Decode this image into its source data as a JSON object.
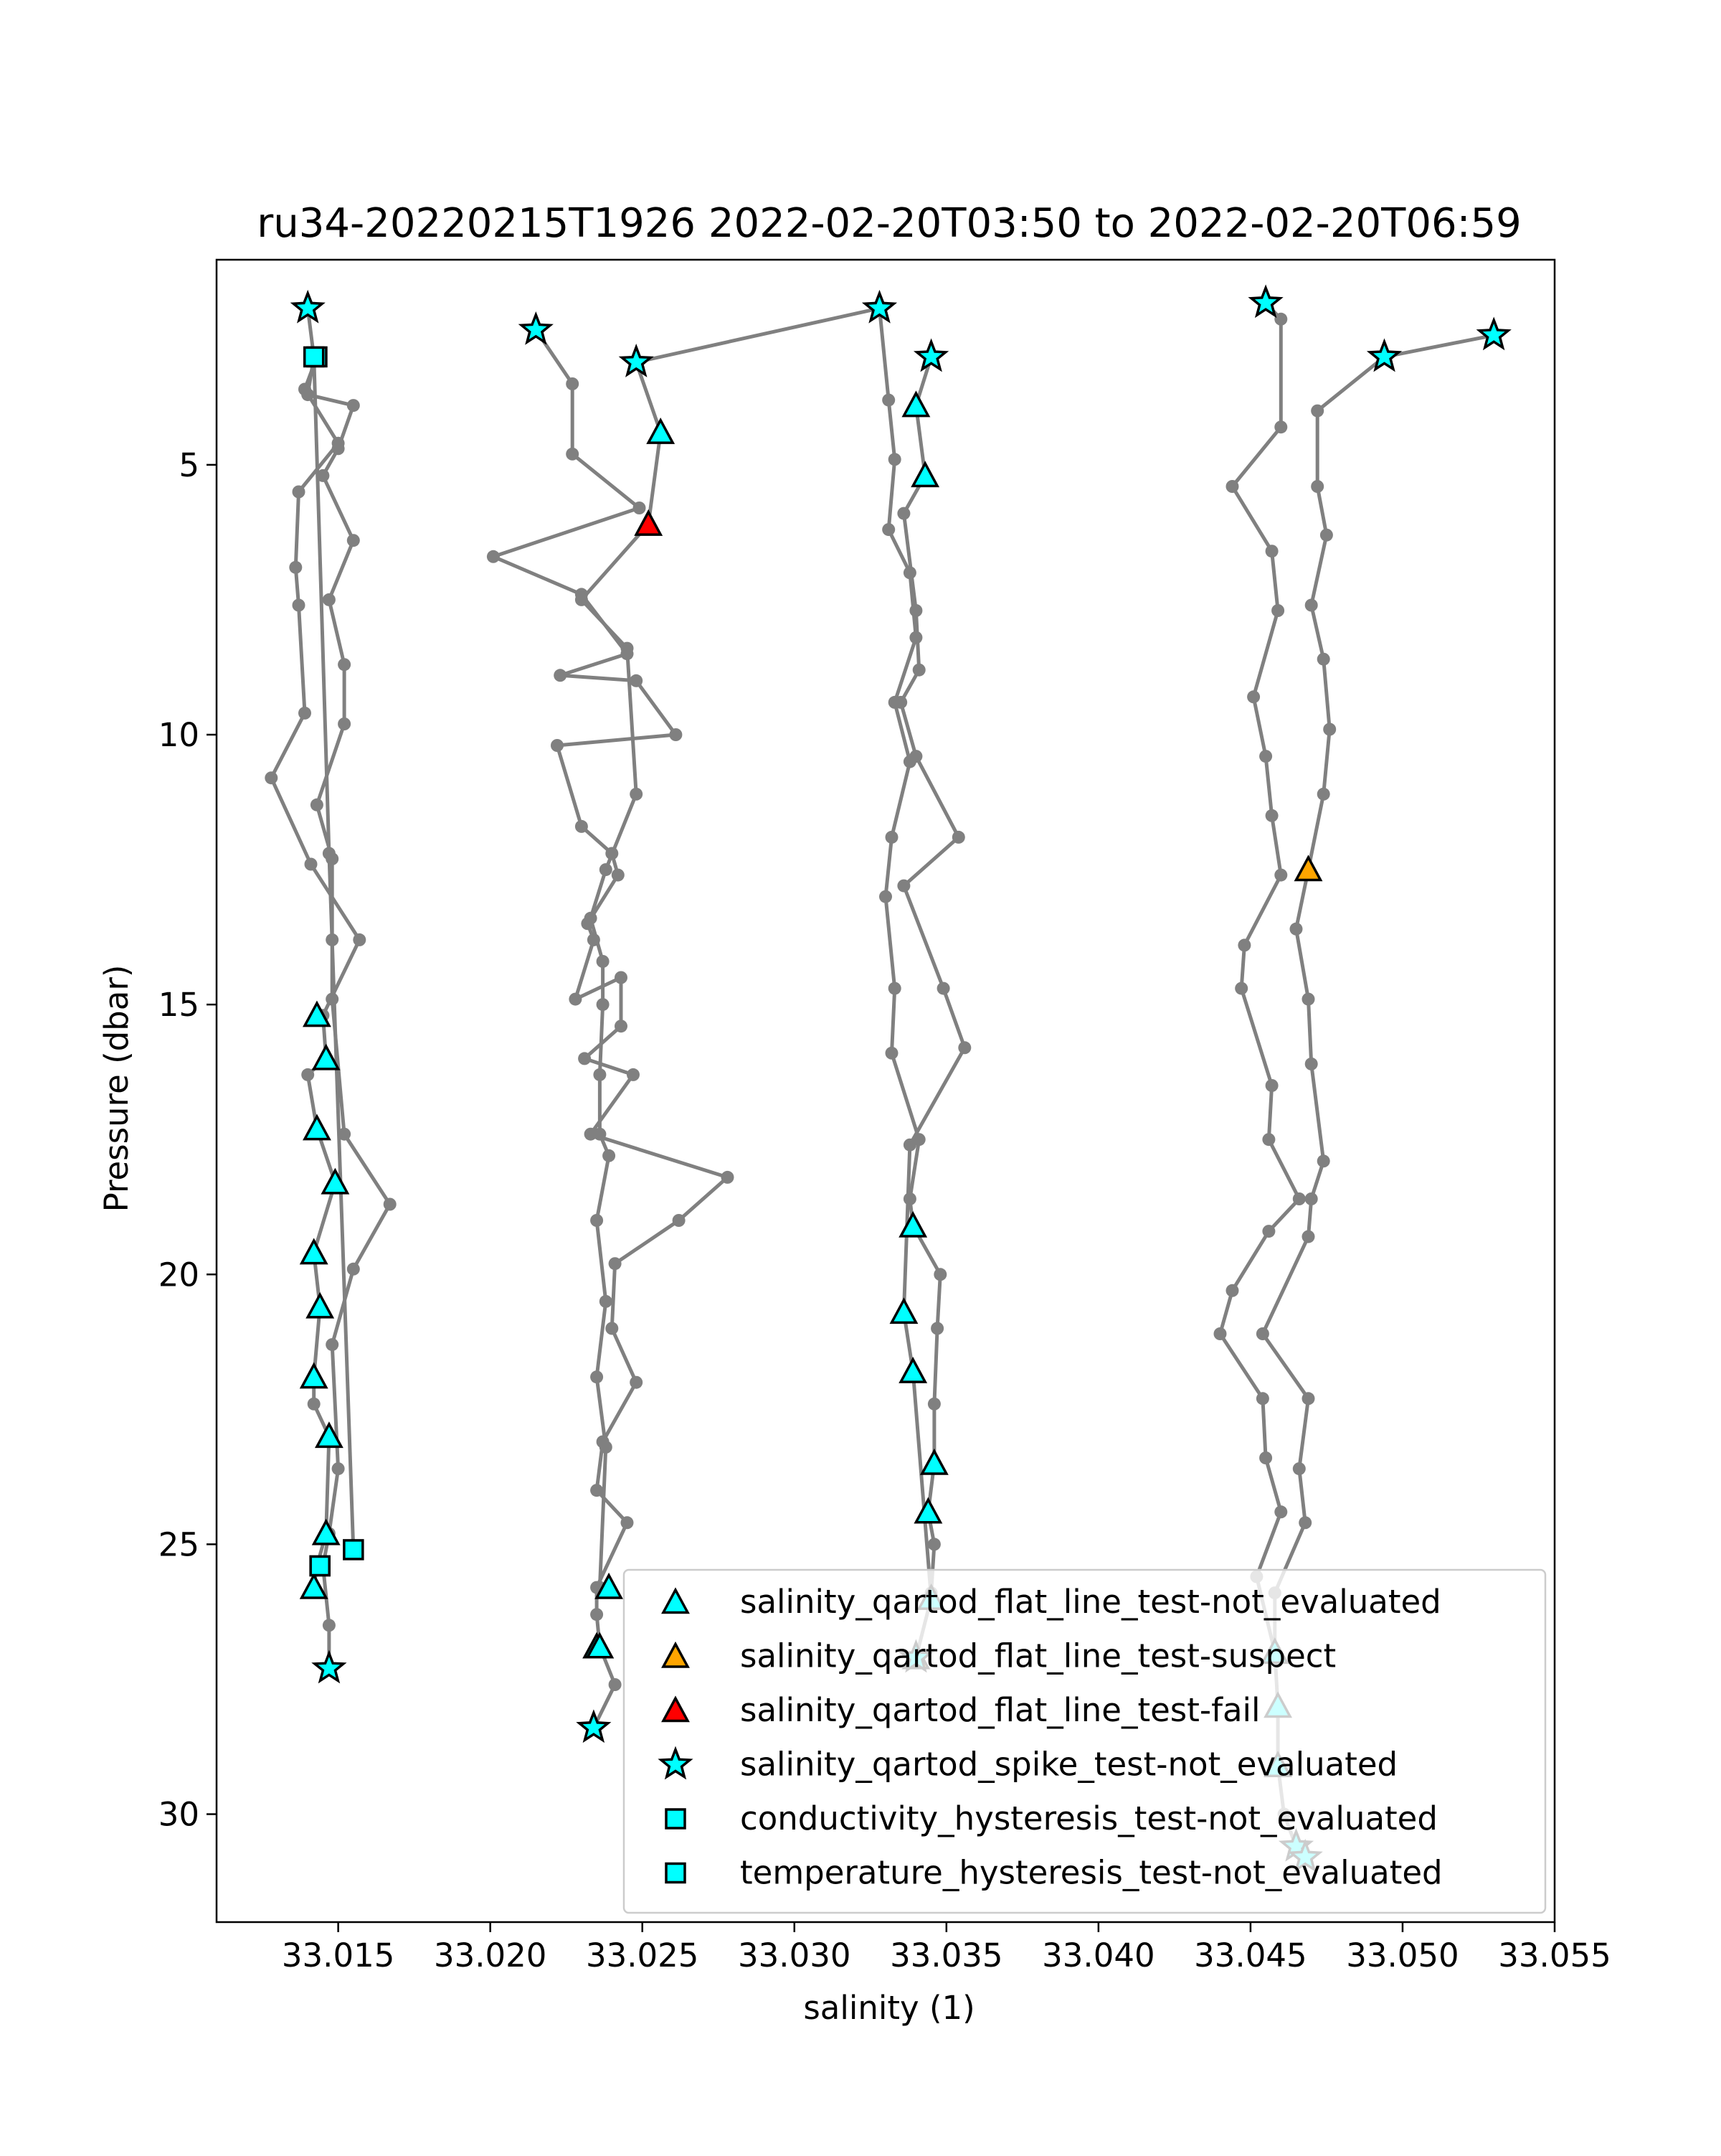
{
  "chart_data": {
    "type": "scatter",
    "title": "ru34-20220215T1926 2022-02-20T03:50 to 2022-02-20T06:59",
    "xlabel": "salinity (1)",
    "ylabel": "Pressure (dbar)",
    "xlim": [
      33.011,
      33.055
    ],
    "ylim": [
      32.0,
      1.2
    ],
    "y_inverted": true,
    "grid": false,
    "legend_position": "lower-right",
    "x_ticks": [
      "33.015",
      "33.020",
      "33.025",
      "33.030",
      "33.035",
      "33.040",
      "33.045",
      "33.050",
      "33.055"
    ],
    "y_ticks": [
      "5",
      "10",
      "15",
      "20",
      "25",
      "30"
    ],
    "profile_color": "#808080",
    "profiles": [
      [
        [
          33.014,
          2.1
        ],
        [
          33.0142,
          3.0
        ],
        [
          33.014,
          3.7
        ],
        [
          33.0155,
          3.9
        ],
        [
          33.015,
          4.7
        ],
        [
          33.0145,
          5.2
        ],
        [
          33.0155,
          6.4
        ],
        [
          33.0147,
          7.5
        ],
        [
          33.0152,
          8.7
        ],
        [
          33.0152,
          9.8
        ],
        [
          33.0143,
          11.3
        ],
        [
          33.0148,
          12.3
        ],
        [
          33.0148,
          13.8
        ],
        [
          33.0148,
          14.9
        ],
        [
          33.0152,
          17.4
        ],
        [
          33.0167,
          18.7
        ],
        [
          33.0155,
          19.9
        ],
        [
          33.0148,
          21.3
        ],
        [
          33.015,
          23.6
        ],
        [
          33.0147,
          24.8
        ],
        [
          33.0145,
          25.4
        ],
        [
          33.0147,
          26.5
        ],
        [
          33.0147,
          27.3
        ]
      ],
      [
        [
          33.0142,
          3.0
        ],
        [
          33.0147,
          12.2
        ],
        [
          33.0155,
          25.1
        ]
      ],
      [
        [
          33.0143,
          3.0
        ],
        [
          33.0139,
          3.6
        ],
        [
          33.015,
          4.6
        ],
        [
          33.0137,
          5.5
        ],
        [
          33.0136,
          6.9
        ],
        [
          33.0137,
          7.6
        ],
        [
          33.0139,
          9.6
        ],
        [
          33.0128,
          10.8
        ],
        [
          33.0141,
          12.4
        ],
        [
          33.0157,
          13.8
        ],
        [
          33.0145,
          15.2
        ],
        [
          33.0146,
          16.0
        ],
        [
          33.014,
          16.3
        ],
        [
          33.0143,
          17.3
        ],
        [
          33.0149,
          18.3
        ],
        [
          33.0142,
          19.6
        ],
        [
          33.0144,
          20.6
        ],
        [
          33.0142,
          21.9
        ],
        [
          33.0142,
          22.4
        ],
        [
          33.0147,
          23.0
        ],
        [
          33.0146,
          24.8
        ],
        [
          33.0143,
          25.4
        ],
        [
          33.0142,
          25.8
        ]
      ],
      [
        [
          33.0215,
          2.5
        ],
        [
          33.0227,
          3.5
        ],
        [
          33.0227,
          4.8
        ],
        [
          33.0249,
          5.8
        ],
        [
          33.0201,
          6.7
        ],
        [
          33.023,
          7.4
        ],
        [
          33.0245,
          8.5
        ],
        [
          33.0223,
          8.9
        ],
        [
          33.0248,
          9.0
        ],
        [
          33.0261,
          10.0
        ],
        [
          33.0222,
          10.2
        ],
        [
          33.023,
          11.7
        ],
        [
          33.024,
          12.2
        ],
        [
          33.0242,
          12.6
        ],
        [
          33.0232,
          13.5
        ],
        [
          33.0234,
          13.8
        ],
        [
          33.0228,
          14.9
        ],
        [
          33.0243,
          14.5
        ],
        [
          33.0243,
          15.4
        ],
        [
          33.0231,
          16.0
        ],
        [
          33.0247,
          16.3
        ],
        [
          33.0233,
          17.4
        ],
        [
          33.0278,
          18.2
        ],
        [
          33.0262,
          19.0
        ],
        [
          33.0241,
          19.8
        ],
        [
          33.024,
          21.0
        ],
        [
          33.0248,
          22.0
        ],
        [
          33.0237,
          23.1
        ],
        [
          33.0235,
          24.0
        ],
        [
          33.0245,
          24.6
        ],
        [
          33.0235,
          25.8
        ],
        [
          33.0235,
          26.3
        ],
        [
          33.0236,
          26.9
        ],
        [
          33.0241,
          27.6
        ],
        [
          33.0234,
          28.4
        ]
      ],
      [
        [
          33.0248,
          3.1
        ],
        [
          33.0256,
          4.4
        ],
        [
          33.0252,
          6.1
        ],
        [
          33.023,
          7.5
        ],
        [
          33.0245,
          8.4
        ],
        [
          33.0248,
          11.1
        ],
        [
          33.0238,
          12.5
        ],
        [
          33.0233,
          13.4
        ],
        [
          33.0237,
          14.2
        ],
        [
          33.0237,
          15.0
        ],
        [
          33.0236,
          16.3
        ],
        [
          33.0236,
          17.4
        ],
        [
          33.0239,
          17.8
        ],
        [
          33.0235,
          19.0
        ],
        [
          33.0238,
          20.5
        ],
        [
          33.0235,
          21.9
        ],
        [
          33.0238,
          23.2
        ],
        [
          33.0236,
          25.8
        ]
      ],
      [
        [
          33.0248,
          3.1
        ],
        [
          33.0328,
          2.1
        ],
        [
          33.0331,
          3.8
        ],
        [
          33.0333,
          4.9
        ],
        [
          33.0331,
          6.2
        ],
        [
          33.0338,
          7.0
        ],
        [
          33.034,
          8.2
        ],
        [
          33.0333,
          9.4
        ],
        [
          33.0338,
          10.5
        ],
        [
          33.0332,
          11.9
        ],
        [
          33.033,
          13.0
        ],
        [
          33.0333,
          14.7
        ],
        [
          33.0332,
          15.9
        ],
        [
          33.0341,
          17.5
        ],
        [
          33.0338,
          18.6
        ],
        [
          33.0339,
          19.1
        ],
        [
          33.0348,
          20.0
        ],
        [
          33.0347,
          21.0
        ],
        [
          33.0346,
          22.4
        ],
        [
          33.0346,
          23.5
        ],
        [
          33.0344,
          24.4
        ],
        [
          33.0346,
          25.0
        ],
        [
          33.0345,
          25.9
        ]
      ],
      [
        [
          33.0345,
          3.0
        ],
        [
          33.034,
          3.9
        ],
        [
          33.0343,
          5.2
        ],
        [
          33.0336,
          5.9
        ],
        [
          33.034,
          7.7
        ],
        [
          33.0341,
          8.8
        ],
        [
          33.0335,
          9.4
        ],
        [
          33.034,
          10.4
        ],
        [
          33.0354,
          11.9
        ],
        [
          33.0336,
          12.8
        ],
        [
          33.0349,
          14.7
        ],
        [
          33.0356,
          15.8
        ],
        [
          33.0338,
          17.6
        ],
        [
          33.0336,
          20.7
        ],
        [
          33.0339,
          21.8
        ],
        [
          33.0345,
          26.0
        ],
        [
          33.034,
          27.1
        ]
      ],
      [
        [
          33.0455,
          2.0
        ],
        [
          33.046,
          2.3
        ],
        [
          33.046,
          4.3
        ],
        [
          33.0444,
          5.4
        ],
        [
          33.0457,
          6.6
        ],
        [
          33.0459,
          7.7
        ],
        [
          33.0451,
          9.3
        ],
        [
          33.0455,
          10.4
        ],
        [
          33.0457,
          11.5
        ],
        [
          33.046,
          12.6
        ],
        [
          33.0448,
          13.9
        ],
        [
          33.0447,
          14.7
        ],
        [
          33.0457,
          16.5
        ],
        [
          33.0456,
          17.5
        ],
        [
          33.0466,
          18.6
        ],
        [
          33.0456,
          19.2
        ],
        [
          33.0444,
          20.3
        ],
        [
          33.044,
          21.1
        ],
        [
          33.0454,
          22.3
        ],
        [
          33.0455,
          23.4
        ],
        [
          33.046,
          24.4
        ],
        [
          33.0452,
          25.6
        ],
        [
          33.0458,
          27.0
        ]
      ],
      [
        [
          33.053,
          2.6
        ],
        [
          33.0494,
          3.0
        ],
        [
          33.0472,
          4.0
        ],
        [
          33.0472,
          5.4
        ],
        [
          33.0475,
          6.3
        ],
        [
          33.047,
          7.6
        ],
        [
          33.0474,
          8.6
        ],
        [
          33.0476,
          9.9
        ],
        [
          33.0474,
          11.1
        ],
        [
          33.0469,
          12.5
        ],
        [
          33.0465,
          13.6
        ],
        [
          33.0469,
          14.9
        ],
        [
          33.047,
          16.1
        ],
        [
          33.0474,
          17.9
        ],
        [
          33.047,
          18.6
        ],
        [
          33.0469,
          19.3
        ],
        [
          33.0454,
          21.1
        ],
        [
          33.0469,
          22.3
        ],
        [
          33.0466,
          23.6
        ],
        [
          33.0468,
          24.6
        ],
        [
          33.0458,
          25.9
        ],
        [
          33.0458,
          27.0
        ],
        [
          33.0459,
          28.0
        ],
        [
          33.0459,
          29.1
        ],
        [
          33.0461,
          30.0
        ],
        [
          33.0465,
          30.6
        ],
        [
          33.0468,
          30.8
        ]
      ]
    ],
    "series": [
      {
        "name": "salinity_qartod_flat_line_test-not_evaluated",
        "marker": "triangle",
        "color": "#00ffff",
        "x": [
          33.0256,
          33.034,
          33.0343,
          33.0143,
          33.0146,
          33.0143,
          33.0149,
          33.0142,
          33.0144,
          33.0142,
          33.0147,
          33.0146,
          33.0142,
          33.0239,
          33.0235,
          33.0236,
          33.0339,
          33.0336,
          33.0339,
          33.0346,
          33.0344,
          33.0345,
          33.0458,
          33.0459,
          33.0459
        ],
        "y": [
          4.4,
          3.9,
          5.2,
          15.2,
          16.0,
          17.3,
          18.3,
          19.6,
          20.6,
          21.9,
          23.0,
          24.8,
          25.8,
          25.8,
          26.9,
          26.9,
          19.1,
          20.7,
          21.8,
          23.5,
          24.4,
          26.0,
          27.0,
          28.0,
          29.1
        ]
      },
      {
        "name": "salinity_qartod_flat_line_test-suspect",
        "marker": "triangle",
        "color": "#ffa500",
        "x": [
          33.0469,
          33.034
        ],
        "y": [
          12.5,
          27.1
        ]
      },
      {
        "name": "salinity_qartod_flat_line_test-fail",
        "marker": "triangle",
        "color": "#ff0000",
        "x": [
          33.0252
        ],
        "y": [
          6.1
        ]
      },
      {
        "name": "salinity_qartod_spike_test-not_evaluated",
        "marker": "star",
        "color": "#00ffff",
        "x": [
          33.014,
          33.0215,
          33.0248,
          33.0328,
          33.0345,
          33.0455,
          33.0494,
          33.053,
          33.0147,
          33.0234,
          33.034,
          33.0465,
          33.0468
        ],
        "y": [
          2.1,
          2.5,
          3.1,
          2.1,
          3.0,
          2.0,
          3.0,
          2.6,
          27.3,
          28.4,
          27.1,
          30.6,
          30.8
        ]
      },
      {
        "name": "conductivity_hysteresis_test-not_evaluated",
        "marker": "square",
        "color": "#00ffff",
        "x": [
          33.0143,
          33.0155,
          33.0144
        ],
        "y": [
          3.0,
          25.1,
          25.4
        ]
      },
      {
        "name": "temperature_hysteresis_test-not_evaluated",
        "marker": "square",
        "color": "#00ffff",
        "x": [
          33.0142,
          33.0144
        ],
        "y": [
          3.0,
          25.4
        ]
      }
    ]
  }
}
